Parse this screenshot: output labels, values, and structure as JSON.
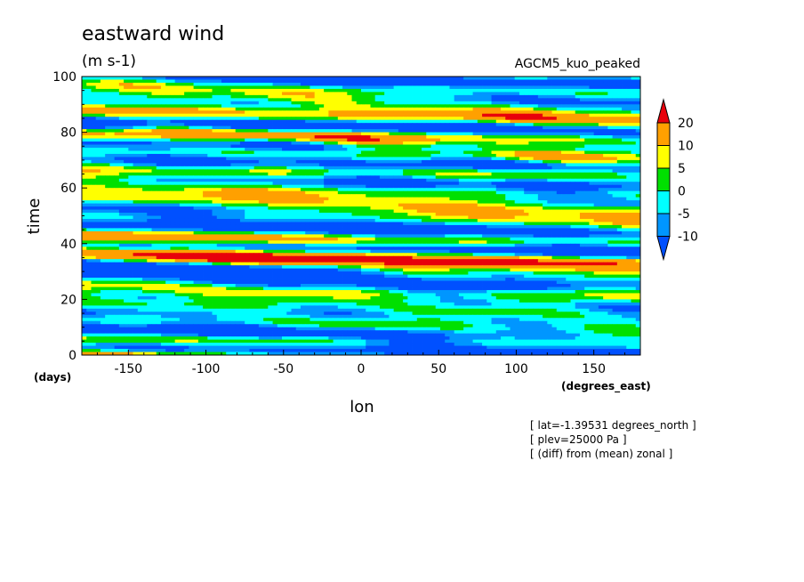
{
  "chart_data": {
    "type": "heatmap",
    "title": "eastward wind",
    "units": "(m s-1)",
    "run_label": "AGCM5_kuo_peaked",
    "xlabel": "lon",
    "ylabel": "time",
    "x_unit": "(degrees_east)",
    "y_unit": "(days)",
    "xlim": [
      -180,
      180
    ],
    "ylim": [
      0,
      100
    ],
    "x_ticks": [
      "-150",
      "-100",
      "-50",
      "0",
      "50",
      "100",
      "150"
    ],
    "x_tick_values": [
      -150,
      -100,
      -50,
      0,
      50,
      100,
      150
    ],
    "y_ticks": [
      "0",
      "20",
      "40",
      "60",
      "80",
      "100"
    ],
    "y_tick_values": [
      0,
      20,
      40,
      60,
      80,
      100
    ],
    "colorbar": {
      "levels": [
        "20",
        "10",
        "5",
        "0",
        "-5",
        "-10"
      ],
      "level_values": [
        20,
        10,
        5,
        0,
        -5,
        -10
      ],
      "colors": [
        "#e8000b",
        "#ffa000",
        "#ffff00",
        "#00e000",
        "#00ffff",
        "#0096ff",
        "#0050ff"
      ],
      "extend": "both"
    },
    "notes": [
      "[ lat=-1.39531 degrees_north ]",
      "[ plev=25000 Pa ]",
      "[ (diff) from (mean) zonal ]"
    ],
    "field_description": "eastward-propagating bands; strong negative (blue) streaks near time 5, 15, 25, 45, 65, 75 days, positive (orange) streaks near 30, 55, 75, 90 days"
  }
}
